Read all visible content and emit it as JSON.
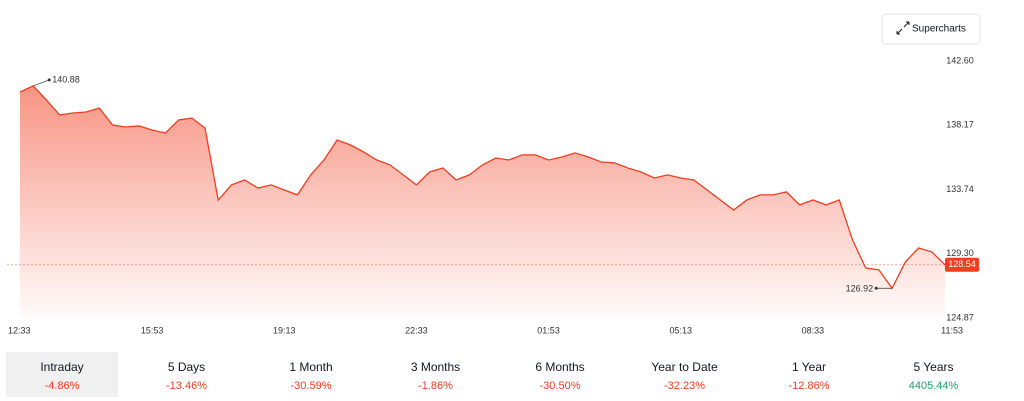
{
  "chart_data": {
    "type": "area",
    "button": "Supercharts",
    "x": [
      0,
      20,
      40,
      60,
      80,
      100,
      120,
      140,
      160,
      180,
      200,
      220,
      240,
      260,
      280,
      300,
      320,
      340,
      360,
      380,
      400,
      420,
      440,
      460,
      480,
      500,
      520,
      540,
      560,
      580,
      600,
      620,
      640,
      660,
      680,
      700,
      720,
      740,
      760,
      780,
      800,
      820,
      840,
      860,
      880,
      900,
      920,
      940,
      960,
      980,
      1000,
      1020,
      1040,
      1060,
      1080,
      1100,
      1120,
      1140,
      1160,
      1180,
      1200,
      1220,
      1240,
      1260,
      1280,
      1300,
      1320,
      1340,
      1360,
      1380,
      1400
    ],
    "series": [
      {
        "color": "#f23d1f",
        "values": [
          140.46,
          140.88,
          139.91,
          138.88,
          139.01,
          139.08,
          139.36,
          138.19,
          138.05,
          138.12,
          137.84,
          137.63,
          138.53,
          138.67,
          137.98,
          133.01,
          134.05,
          134.39,
          133.84,
          134.05,
          133.7,
          133.36,
          134.74,
          135.77,
          137.15,
          136.81,
          136.32,
          135.77,
          135.43,
          134.74,
          134.05,
          134.94,
          135.22,
          134.39,
          134.74,
          135.43,
          135.91,
          135.77,
          136.12,
          136.12,
          135.77,
          135.98,
          136.26,
          135.98,
          135.63,
          135.57,
          135.22,
          134.94,
          134.53,
          134.74,
          134.53,
          134.39,
          133.7,
          133.01,
          132.32,
          133.01,
          133.36,
          133.36,
          133.57,
          132.67,
          133.01,
          132.67,
          133.01,
          130.26,
          128.32,
          128.19,
          126.92,
          128.74,
          129.7,
          129.43,
          128.54
        ]
      }
    ],
    "xlim": [
      0,
      1400
    ],
    "xticks": [
      {
        "value": 0,
        "label": "12:33"
      },
      {
        "value": 200,
        "label": "15:53"
      },
      {
        "value": 400,
        "label": "19:13"
      },
      {
        "value": 600,
        "label": "22:33"
      },
      {
        "value": 800,
        "label": "01:53"
      },
      {
        "value": 1000,
        "label": "05:13"
      },
      {
        "value": 1200,
        "label": "08:33"
      },
      {
        "value": 1400,
        "label": "11:53"
      }
    ],
    "ylim": [
      124.87,
      142.6
    ],
    "yticks": [
      124.87,
      {
        "value": 129.3,
        "label": "129.30"
      },
      133.74,
      138.17,
      {
        "value": 142.6,
        "label": "142.60"
      }
    ],
    "tabs": [
      {
        "label": "Intraday",
        "change": "-4.86%",
        "color": "#f23d1f",
        "active": true
      },
      {
        "label": "5 Days",
        "change": "-13.46%",
        "color": "#f23d1f"
      },
      {
        "label": "1 Month",
        "change": "-30.59%",
        "color": "#f23d1f"
      },
      {
        "label": "3 Months",
        "change": "-1.86%",
        "color": "#f23d1f"
      },
      {
        "label": "6 Months",
        "change": "-30.50%",
        "color": "#f23d1f"
      },
      {
        "label": "Year to Date",
        "change": "-32.23%",
        "color": "#f23d1f"
      },
      {
        "label": "1 Year",
        "change": "-12.86%",
        "color": "#f23d1f"
      },
      {
        "label": "5 Years",
        "change": "4405.44%",
        "color": "#22a06b"
      }
    ]
  }
}
